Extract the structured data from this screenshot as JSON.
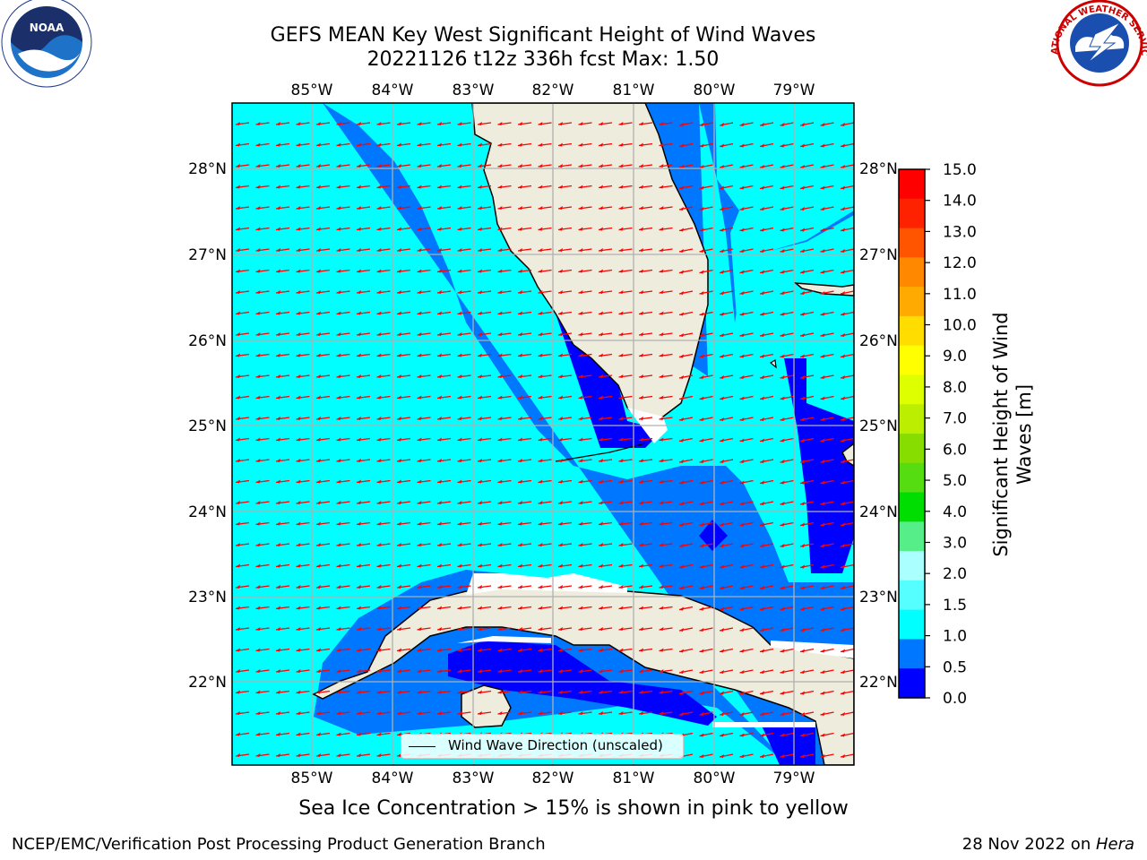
{
  "title": {
    "line1": "GEFS MEAN Key West Significant Height of Wind Waves",
    "line2": "20221126 t12z 336h fcst   Max: 1.50"
  },
  "longitude_ticks": [
    "85°W",
    "84°W",
    "83°W",
    "82°W",
    "81°W",
    "80°W",
    "79°W"
  ],
  "latitude_ticks": [
    "28°N",
    "27°N",
    "26°N",
    "25°N",
    "24°N",
    "23°N",
    "22°N"
  ],
  "legend": {
    "label": "Wind Wave Direction (unscaled)"
  },
  "colorbar": {
    "label_line1": "Significant Height of Wind",
    "label_line2": "Waves [m]",
    "ticks": [
      "15.0",
      "14.0",
      "13.0",
      "12.0",
      "11.0",
      "10.0",
      "9.0",
      "8.0",
      "7.0",
      "6.0",
      "5.0",
      "4.0",
      "3.0",
      "2.0",
      "1.5",
      "1.0",
      "0.5",
      "0.0"
    ],
    "colors": [
      "#ff0000",
      "#ff2200",
      "#ff5500",
      "#ff8800",
      "#ffaa00",
      "#ffdd00",
      "#ffff00",
      "#ddff00",
      "#bbee00",
      "#88dd00",
      "#55dd11",
      "#00dd00",
      "#55ee88",
      "#aaffff",
      "#55ffff",
      "#00ffff",
      "#0077ff",
      "#0000ff"
    ]
  },
  "colors": {
    "land": "#eeecdc",
    "wave_lt_0_5": "#0000ff",
    "wave_0_5_1_0": "#0077ff",
    "wave_1_0_1_5": "#00ffff",
    "arrow": "#ff0000",
    "grid": "#b0b0b0"
  },
  "ice_note": "Sea Ice Concentration > 15% is shown in pink to yellow",
  "footer": {
    "left": "NCEP/EMC/Verification Post Processing Product Generation Branch",
    "right_prefix": "28 Nov 2022 on ",
    "right_italic": "Hera"
  },
  "logos": {
    "left": "NOAA",
    "right": "NATIONAL WEATHER SERVICE"
  }
}
